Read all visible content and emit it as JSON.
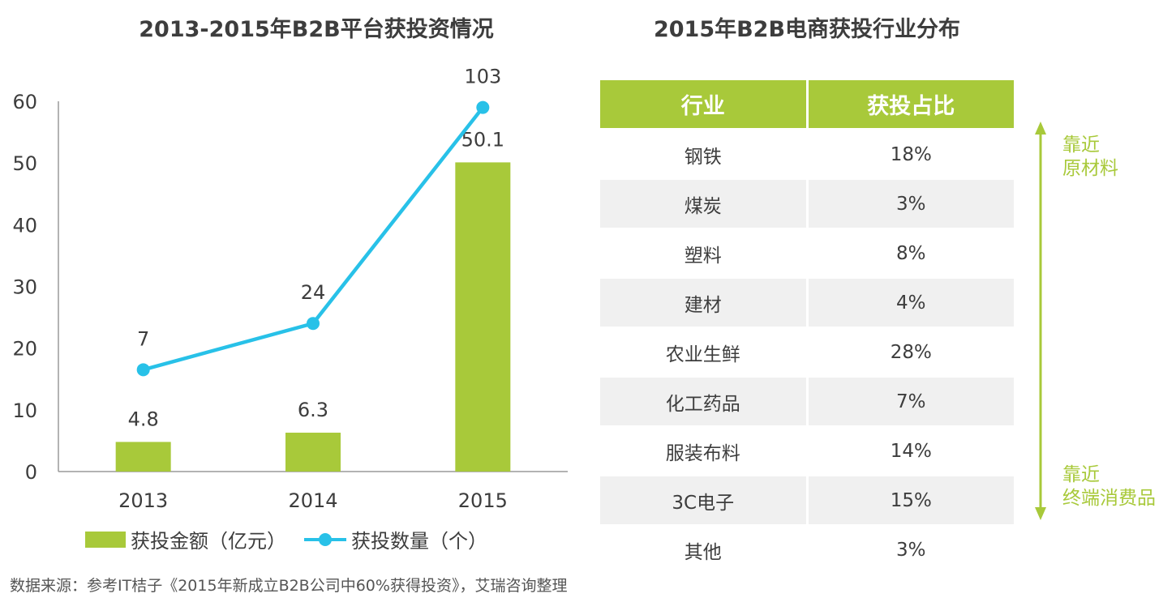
{
  "colors": {
    "bar": "#a8c93a",
    "line": "#28c1e8",
    "header": "#a8c93a",
    "arrow": "#a8c93a",
    "text": "#3d3d3d"
  },
  "chart_data": {
    "type": "bar",
    "title": "2013-2015年B2B平台获投资情况",
    "categories": [
      "2013",
      "2014",
      "2015"
    ],
    "ylim": [
      0,
      60
    ],
    "yticks": [
      0,
      10,
      20,
      30,
      40,
      50,
      60
    ],
    "series": [
      {
        "name": "获投金额（亿元）",
        "kind": "bar",
        "values": [
          4.8,
          6.3,
          50.1
        ],
        "labels": [
          "4.8",
          "6.3",
          "50.1"
        ]
      },
      {
        "name": "获投数量（个）",
        "kind": "line",
        "values": [
          7,
          24,
          103
        ],
        "plot_values": [
          16.5,
          24,
          59
        ],
        "labels": [
          "7",
          "24",
          "103"
        ]
      }
    ],
    "legend": [
      "获投金额（亿元）",
      "获投数量（个）"
    ]
  },
  "table": {
    "title": "2015年B2B电商获投行业分布",
    "headers": [
      "行业",
      "获投占比"
    ],
    "rows": [
      {
        "industry": "钢铁",
        "share": "18%"
      },
      {
        "industry": "煤炭",
        "share": "3%"
      },
      {
        "industry": "塑料",
        "share": "8%"
      },
      {
        "industry": "建材",
        "share": "4%"
      },
      {
        "industry": "农业生鲜",
        "share": "28%"
      },
      {
        "industry": "化工药品",
        "share": "7%"
      },
      {
        "industry": "服装布料",
        "share": "14%"
      },
      {
        "industry": "3C电子",
        "share": "15%"
      },
      {
        "industry": "其他",
        "share": "3%"
      }
    ]
  },
  "side": {
    "top": {
      "line1": "靠近",
      "line2": "原材料"
    },
    "bottom": {
      "line1": "靠近",
      "line2": "终端消费品"
    }
  },
  "source": "数据来源：参考IT桔子《2015年新成立B2B公司中60%获得投资》，艾瑞咨询整理"
}
